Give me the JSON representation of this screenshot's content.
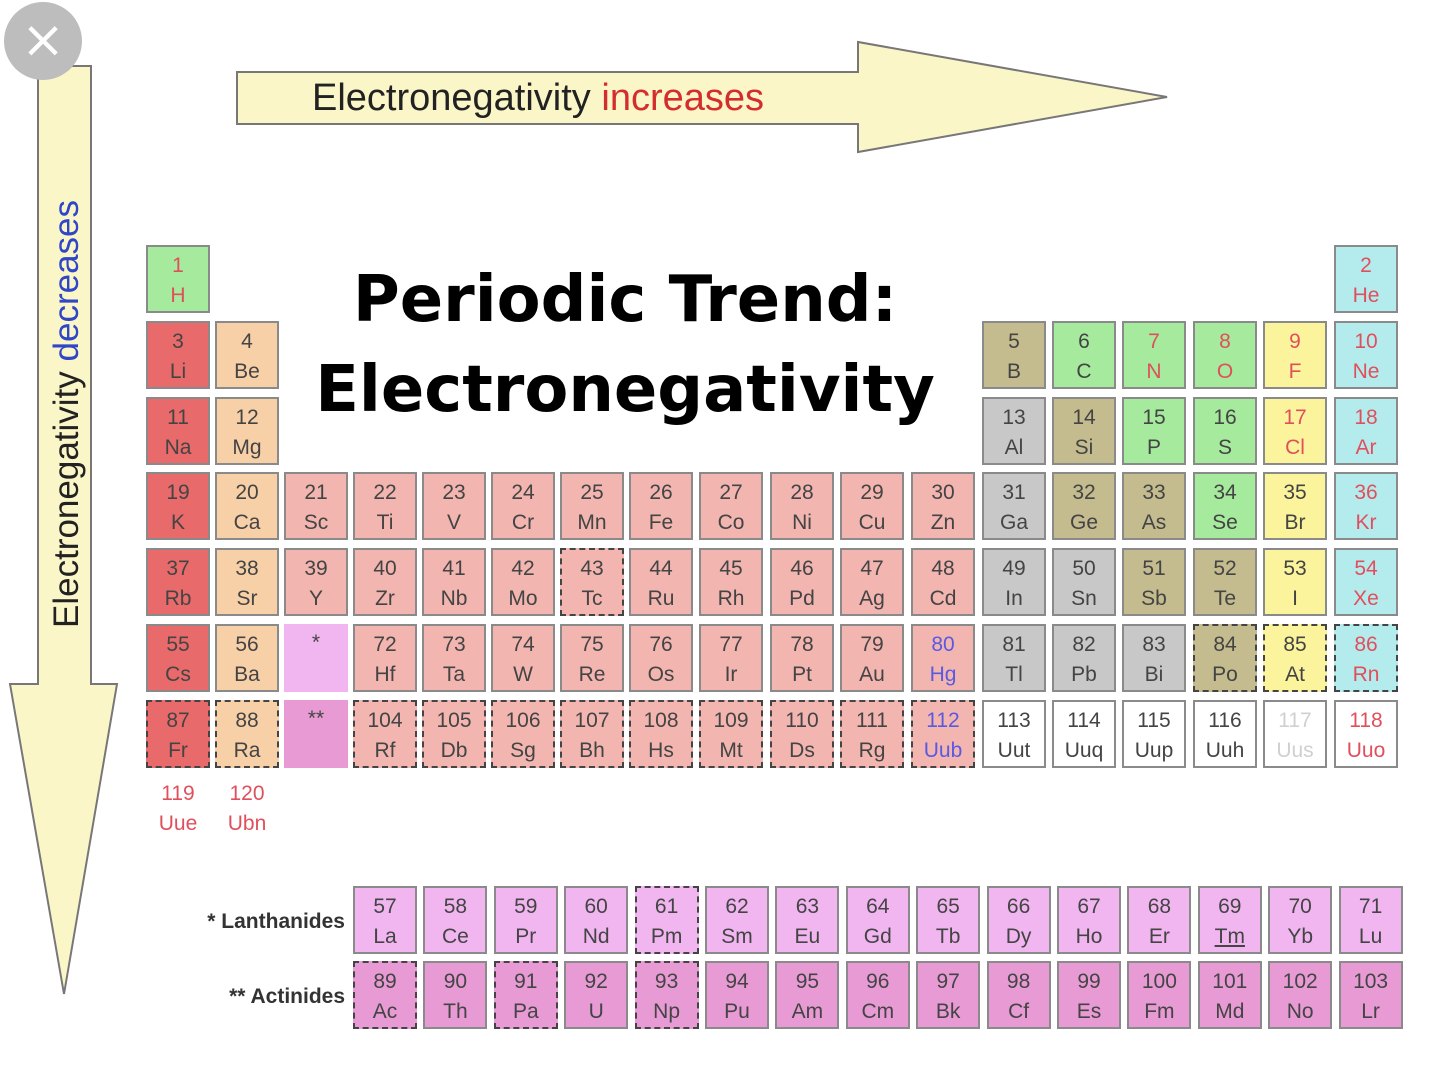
{
  "close_label": "×",
  "title": {
    "line1": "Periodic Trend:",
    "line2": "Electronegativity"
  },
  "arrows": {
    "horizontal": {
      "prefix": "Electronegativity ",
      "emph": "increases",
      "prefix_color": "#222222",
      "emph_color": "#d42d2d",
      "fill": "#fbf6c8"
    },
    "vertical": {
      "prefix": "Electronegativity ",
      "emph": "decreases",
      "prefix_color": "#222222",
      "emph_color": "#2f46c8",
      "fill": "#fbf6c8"
    }
  },
  "series_labels": {
    "lanthanides": "* Lanthanides",
    "actinides": "** Actinides"
  },
  "colors": {
    "alkali": "#e96a6a",
    "alkaline": "#f8d0a8",
    "transition": "#f2b5b0",
    "post": "#c8c8c8",
    "metalloid": "#c4bc8e",
    "nonmetal": "#a6ea9e",
    "halogen": "#fbf49c",
    "noble": "#b4ecee",
    "lanth": "#f1b6f0",
    "actin": "#e89ad4",
    "unknown": "#ffffff"
  },
  "text_colors": {
    "red": "#e0505c",
    "blue": "#5a5ae0",
    "gray": "#444444",
    "light": "#d0d0d0"
  },
  "elements": [
    {
      "n": "1",
      "s": "H",
      "c": "nonmetal",
      "t": "red"
    },
    {
      "n": "2",
      "s": "He",
      "c": "noble",
      "t": "red"
    },
    {
      "n": "3",
      "s": "Li",
      "c": "alkali",
      "t": "gray"
    },
    {
      "n": "4",
      "s": "Be",
      "c": "alkaline",
      "t": "gray"
    },
    {
      "n": "5",
      "s": "B",
      "c": "metalloid",
      "t": "gray"
    },
    {
      "n": "6",
      "s": "C",
      "c": "nonmetal",
      "t": "gray"
    },
    {
      "n": "7",
      "s": "N",
      "c": "nonmetal",
      "t": "red"
    },
    {
      "n": "8",
      "s": "O",
      "c": "nonmetal",
      "t": "red"
    },
    {
      "n": "9",
      "s": "F",
      "c": "halogen",
      "t": "red"
    },
    {
      "n": "10",
      "s": "Ne",
      "c": "noble",
      "t": "red"
    },
    {
      "n": "11",
      "s": "Na",
      "c": "alkali",
      "t": "gray"
    },
    {
      "n": "12",
      "s": "Mg",
      "c": "alkaline",
      "t": "gray"
    },
    {
      "n": "13",
      "s": "Al",
      "c": "post",
      "t": "gray"
    },
    {
      "n": "14",
      "s": "Si",
      "c": "metalloid",
      "t": "gray"
    },
    {
      "n": "15",
      "s": "P",
      "c": "nonmetal",
      "t": "gray"
    },
    {
      "n": "16",
      "s": "S",
      "c": "nonmetal",
      "t": "gray"
    },
    {
      "n": "17",
      "s": "Cl",
      "c": "halogen",
      "t": "red"
    },
    {
      "n": "18",
      "s": "Ar",
      "c": "noble",
      "t": "red"
    },
    {
      "n": "19",
      "s": "K",
      "c": "alkali",
      "t": "gray"
    },
    {
      "n": "20",
      "s": "Ca",
      "c": "alkaline",
      "t": "gray"
    },
    {
      "n": "21",
      "s": "Sc",
      "c": "transition",
      "t": "gray"
    },
    {
      "n": "22",
      "s": "Ti",
      "c": "transition",
      "t": "gray"
    },
    {
      "n": "23",
      "s": "V",
      "c": "transition",
      "t": "gray"
    },
    {
      "n": "24",
      "s": "Cr",
      "c": "transition",
      "t": "gray"
    },
    {
      "n": "25",
      "s": "Mn",
      "c": "transition",
      "t": "gray"
    },
    {
      "n": "26",
      "s": "Fe",
      "c": "transition",
      "t": "gray"
    },
    {
      "n": "27",
      "s": "Co",
      "c": "transition",
      "t": "gray"
    },
    {
      "n": "28",
      "s": "Ni",
      "c": "transition",
      "t": "gray"
    },
    {
      "n": "29",
      "s": "Cu",
      "c": "transition",
      "t": "gray"
    },
    {
      "n": "30",
      "s": "Zn",
      "c": "transition",
      "t": "gray"
    },
    {
      "n": "31",
      "s": "Ga",
      "c": "post",
      "t": "gray"
    },
    {
      "n": "32",
      "s": "Ge",
      "c": "metalloid",
      "t": "gray"
    },
    {
      "n": "33",
      "s": "As",
      "c": "metalloid",
      "t": "gray"
    },
    {
      "n": "34",
      "s": "Se",
      "c": "nonmetal",
      "t": "gray"
    },
    {
      "n": "35",
      "s": "Br",
      "c": "halogen",
      "t": "gray"
    },
    {
      "n": "36",
      "s": "Kr",
      "c": "noble",
      "t": "red"
    },
    {
      "n": "37",
      "s": "Rb",
      "c": "alkali",
      "t": "gray"
    },
    {
      "n": "38",
      "s": "Sr",
      "c": "alkaline",
      "t": "gray"
    },
    {
      "n": "39",
      "s": "Y",
      "c": "transition",
      "t": "gray"
    },
    {
      "n": "40",
      "s": "Zr",
      "c": "transition",
      "t": "gray"
    },
    {
      "n": "41",
      "s": "Nb",
      "c": "transition",
      "t": "gray"
    },
    {
      "n": "42",
      "s": "Mo",
      "c": "transition",
      "t": "gray"
    },
    {
      "n": "43",
      "s": "Tc",
      "c": "transition",
      "t": "gray",
      "d": 1
    },
    {
      "n": "44",
      "s": "Ru",
      "c": "transition",
      "t": "gray"
    },
    {
      "n": "45",
      "s": "Rh",
      "c": "transition",
      "t": "gray"
    },
    {
      "n": "46",
      "s": "Pd",
      "c": "transition",
      "t": "gray"
    },
    {
      "n": "47",
      "s": "Ag",
      "c": "transition",
      "t": "gray"
    },
    {
      "n": "48",
      "s": "Cd",
      "c": "transition",
      "t": "gray"
    },
    {
      "n": "49",
      "s": "In",
      "c": "post",
      "t": "gray"
    },
    {
      "n": "50",
      "s": "Sn",
      "c": "post",
      "t": "gray"
    },
    {
      "n": "51",
      "s": "Sb",
      "c": "metalloid",
      "t": "gray"
    },
    {
      "n": "52",
      "s": "Te",
      "c": "metalloid",
      "t": "gray"
    },
    {
      "n": "53",
      "s": "I",
      "c": "halogen",
      "t": "gray"
    },
    {
      "n": "54",
      "s": "Xe",
      "c": "noble",
      "t": "red"
    },
    {
      "n": "55",
      "s": "Cs",
      "c": "alkali",
      "t": "gray"
    },
    {
      "n": "56",
      "s": "Ba",
      "c": "alkaline",
      "t": "gray"
    },
    {
      "n": "*",
      "s": "",
      "c": "lanth",
      "t": "gray"
    },
    {
      "n": "72",
      "s": "Hf",
      "c": "transition",
      "t": "gray"
    },
    {
      "n": "73",
      "s": "Ta",
      "c": "transition",
      "t": "gray"
    },
    {
      "n": "74",
      "s": "W",
      "c": "transition",
      "t": "gray"
    },
    {
      "n": "75",
      "s": "Re",
      "c": "transition",
      "t": "gray"
    },
    {
      "n": "76",
      "s": "Os",
      "c": "transition",
      "t": "gray"
    },
    {
      "n": "77",
      "s": "Ir",
      "c": "transition",
      "t": "gray"
    },
    {
      "n": "78",
      "s": "Pt",
      "c": "transition",
      "t": "gray"
    },
    {
      "n": "79",
      "s": "Au",
      "c": "transition",
      "t": "gray"
    },
    {
      "n": "80",
      "s": "Hg",
      "c": "transition",
      "t": "blue"
    },
    {
      "n": "81",
      "s": "Tl",
      "c": "post",
      "t": "gray"
    },
    {
      "n": "82",
      "s": "Pb",
      "c": "post",
      "t": "gray"
    },
    {
      "n": "83",
      "s": "Bi",
      "c": "post",
      "t": "gray"
    },
    {
      "n": "84",
      "s": "Po",
      "c": "metalloid",
      "t": "gray",
      "d": 1
    },
    {
      "n": "85",
      "s": "At",
      "c": "halogen",
      "t": "gray",
      "d": 1
    },
    {
      "n": "86",
      "s": "Rn",
      "c": "noble",
      "t": "red",
      "d": 1
    },
    {
      "n": "87",
      "s": "Fr",
      "c": "alkali",
      "t": "gray",
      "d": 1
    },
    {
      "n": "88",
      "s": "Ra",
      "c": "alkaline",
      "t": "gray",
      "d": 1
    },
    {
      "n": "**",
      "s": "",
      "c": "actin",
      "t": "gray"
    },
    {
      "n": "104",
      "s": "Rf",
      "c": "transition",
      "t": "gray",
      "d": 1
    },
    {
      "n": "105",
      "s": "Db",
      "c": "transition",
      "t": "gray",
      "d": 1
    },
    {
      "n": "106",
      "s": "Sg",
      "c": "transition",
      "t": "gray",
      "d": 1
    },
    {
      "n": "107",
      "s": "Bh",
      "c": "transition",
      "t": "gray",
      "d": 1
    },
    {
      "n": "108",
      "s": "Hs",
      "c": "transition",
      "t": "gray",
      "d": 1
    },
    {
      "n": "109",
      "s": "Mt",
      "c": "transition",
      "t": "gray",
      "d": 1
    },
    {
      "n": "110",
      "s": "Ds",
      "c": "transition",
      "t": "gray",
      "d": 1
    },
    {
      "n": "111",
      "s": "Rg",
      "c": "transition",
      "t": "gray",
      "d": 1
    },
    {
      "n": "112",
      "s": "Uub",
      "c": "transition",
      "t": "blue",
      "d": 1
    },
    {
      "n": "113",
      "s": "Uut",
      "c": "unknown",
      "t": "gray"
    },
    {
      "n": "114",
      "s": "Uuq",
      "c": "unknown",
      "t": "gray"
    },
    {
      "n": "115",
      "s": "Uup",
      "c": "unknown",
      "t": "gray"
    },
    {
      "n": "116",
      "s": "Uuh",
      "c": "unknown",
      "t": "gray"
    },
    {
      "n": "117",
      "s": "Uus",
      "c": "unknown",
      "t": "light"
    },
    {
      "n": "118",
      "s": "Uuo",
      "c": "unknown",
      "t": "red"
    },
    {
      "n": "119",
      "s": "Uue",
      "c": "none",
      "t": "red"
    },
    {
      "n": "120",
      "s": "Ubn",
      "c": "none",
      "t": "red"
    },
    {
      "n": "57",
      "s": "La",
      "c": "lanth",
      "t": "gray"
    },
    {
      "n": "58",
      "s": "Ce",
      "c": "lanth",
      "t": "gray"
    },
    {
      "n": "59",
      "s": "Pr",
      "c": "lanth",
      "t": "gray"
    },
    {
      "n": "60",
      "s": "Nd",
      "c": "lanth",
      "t": "gray"
    },
    {
      "n": "61",
      "s": "Pm",
      "c": "lanth",
      "t": "gray",
      "d": 1
    },
    {
      "n": "62",
      "s": "Sm",
      "c": "lanth",
      "t": "gray"
    },
    {
      "n": "63",
      "s": "Eu",
      "c": "lanth",
      "t": "gray"
    },
    {
      "n": "64",
      "s": "Gd",
      "c": "lanth",
      "t": "gray"
    },
    {
      "n": "65",
      "s": "Tb",
      "c": "lanth",
      "t": "gray"
    },
    {
      "n": "66",
      "s": "Dy",
      "c": "lanth",
      "t": "gray"
    },
    {
      "n": "67",
      "s": "Ho",
      "c": "lanth",
      "t": "gray"
    },
    {
      "n": "68",
      "s": "Er",
      "c": "lanth",
      "t": "gray"
    },
    {
      "n": "69",
      "s": "Tm",
      "c": "lanth",
      "t": "gray"
    },
    {
      "n": "70",
      "s": "Yb",
      "c": "lanth",
      "t": "gray"
    },
    {
      "n": "71",
      "s": "Lu",
      "c": "lanth",
      "t": "gray"
    },
    {
      "n": "89",
      "s": "Ac",
      "c": "actin",
      "t": "gray",
      "d": 1
    },
    {
      "n": "90",
      "s": "Th",
      "c": "actin",
      "t": "gray"
    },
    {
      "n": "91",
      "s": "Pa",
      "c": "actin",
      "t": "gray",
      "d": 1
    },
    {
      "n": "92",
      "s": "U",
      "c": "actin",
      "t": "gray"
    },
    {
      "n": "93",
      "s": "Np",
      "c": "actin",
      "t": "gray",
      "d": 1
    },
    {
      "n": "94",
      "s": "Pu",
      "c": "actin",
      "t": "gray"
    },
    {
      "n": "95",
      "s": "Am",
      "c": "actin",
      "t": "gray"
    },
    {
      "n": "96",
      "s": "Cm",
      "c": "actin",
      "t": "gray"
    },
    {
      "n": "97",
      "s": "Bk",
      "c": "actin",
      "t": "gray"
    },
    {
      "n": "98",
      "s": "Cf",
      "c": "actin",
      "t": "gray"
    },
    {
      "n": "99",
      "s": "Es",
      "c": "actin",
      "t": "gray"
    },
    {
      "n": "100",
      "s": "Fm",
      "c": "actin",
      "t": "gray"
    },
    {
      "n": "101",
      "s": "Md",
      "c": "actin",
      "t": "gray"
    },
    {
      "n": "102",
      "s": "No",
      "c": "actin",
      "t": "gray"
    },
    {
      "n": "103",
      "s": "Lr",
      "c": "actin",
      "t": "gray"
    }
  ]
}
